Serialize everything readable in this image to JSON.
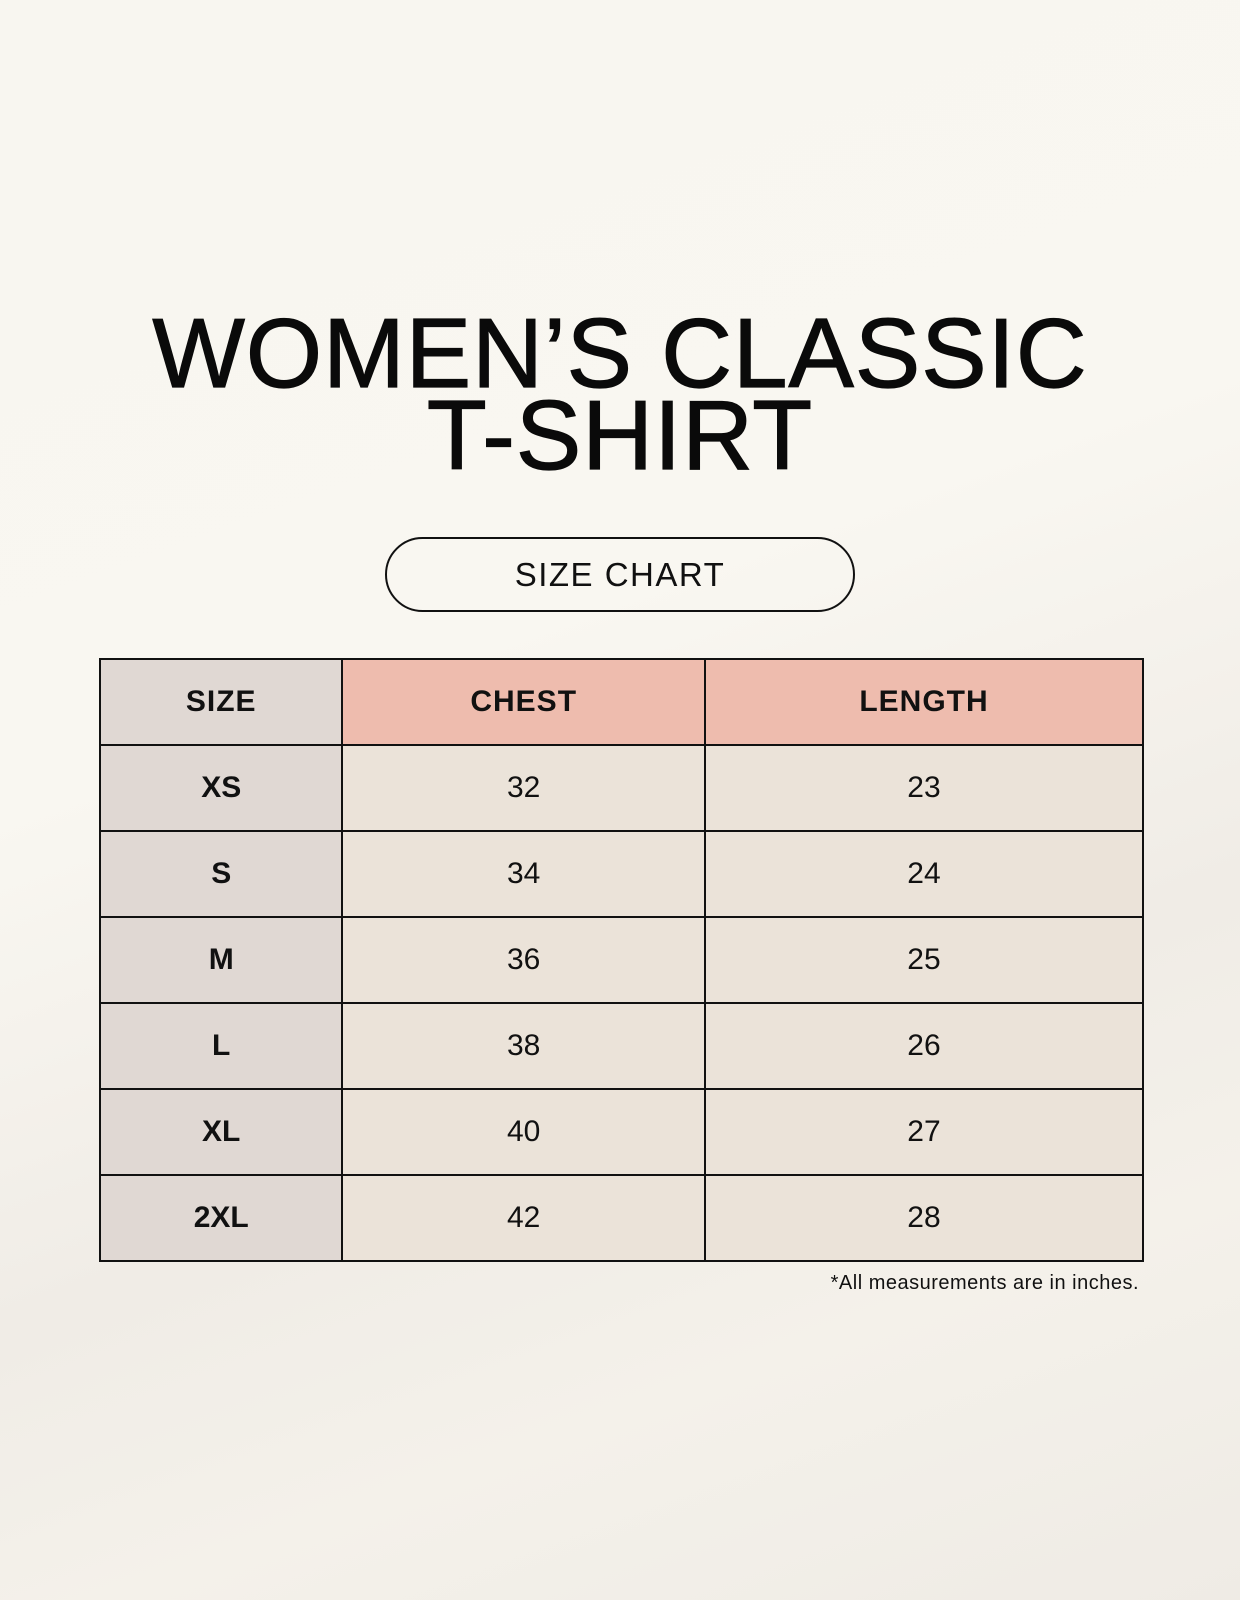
{
  "title_line1": "WOMEN’S CLASSIC",
  "title_line2": "T-SHIRT",
  "subtitle": "SIZE CHART",
  "table": {
    "headers": [
      "SIZE",
      "CHEST",
      "LENGTH"
    ],
    "rows": [
      [
        "XS",
        "32",
        "23"
      ],
      [
        "S",
        "34",
        "24"
      ],
      [
        "M",
        "36",
        "25"
      ],
      [
        "L",
        "38",
        "26"
      ],
      [
        "XL",
        "40",
        "27"
      ],
      [
        "2XL",
        "42",
        "28"
      ]
    ]
  },
  "footnote": "*All measurements are in inches.",
  "colors": {
    "size_column": "#e0d8d3",
    "header_accent": "#eebcae",
    "value_cells": "#ebe3d9"
  }
}
